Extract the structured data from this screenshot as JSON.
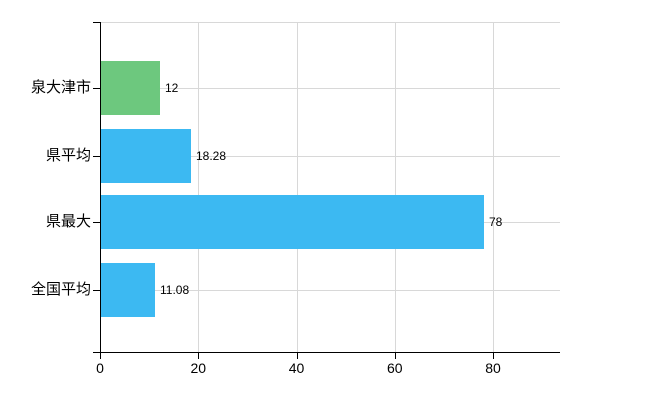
{
  "chart_data": {
    "type": "bar",
    "orientation": "horizontal",
    "title": "",
    "xlabel": "",
    "ylabel": "",
    "categories": [
      "泉大津市",
      "県平均",
      "県最大",
      "全国平均"
    ],
    "values": [
      12,
      18.28,
      78,
      11.08
    ],
    "value_labels": [
      "12",
      "18.28",
      "78",
      "11.08"
    ],
    "bar_colors": [
      "#6dc87e",
      "#3cb9f2",
      "#3cb9f2",
      "#3cb9f2"
    ],
    "x_ticks": [
      0,
      20,
      40,
      60,
      80
    ],
    "x_tick_labels": [
      "0",
      "20",
      "40",
      "60",
      "80"
    ],
    "xlim": [
      0,
      93.6
    ],
    "grid": true,
    "legend": "none",
    "colors": {
      "gridline": "#d8d8d8",
      "axis": "#000000",
      "text": "#000000",
      "background": "#ffffff",
      "bar_blue": "#3cb9f2",
      "bar_green": "#6dc87e"
    }
  }
}
